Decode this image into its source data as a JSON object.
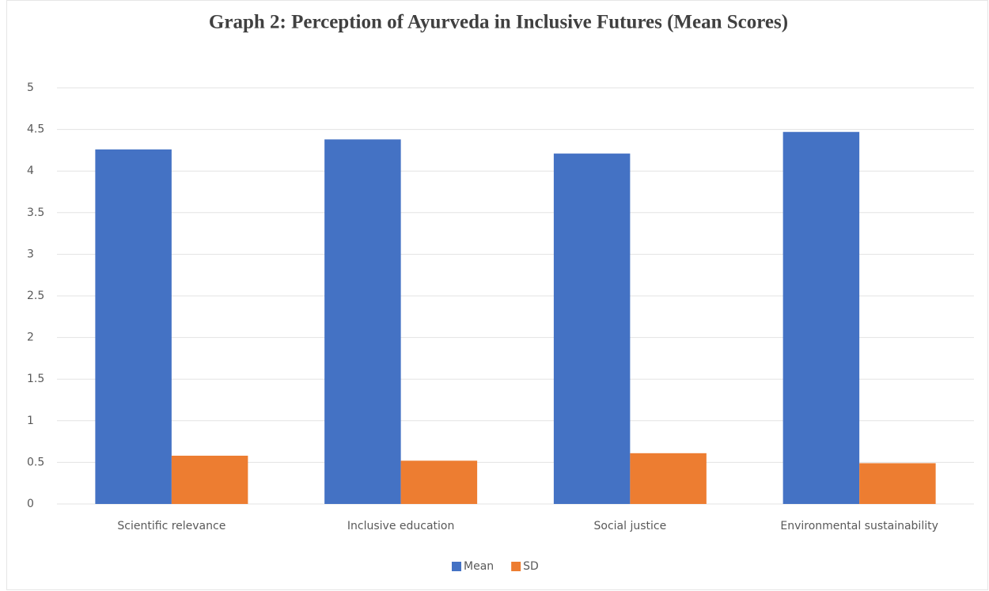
{
  "chart_data": {
    "type": "bar",
    "title": "Graph 2: Perception of Ayurveda in Inclusive Futures (Mean Scores)",
    "categories": [
      "Scientific relevance",
      "Inclusive education",
      "Social justice",
      "Environmental sustainability"
    ],
    "series": [
      {
        "name": "Mean",
        "color": "#4472c4",
        "values": [
          4.26,
          4.38,
          4.21,
          4.47
        ]
      },
      {
        "name": "SD",
        "color": "#ed7d31",
        "values": [
          0.58,
          0.52,
          0.61,
          0.49
        ]
      }
    ],
    "ylim": [
      0,
      5
    ],
    "yticks": [
      0,
      0.5,
      1,
      1.5,
      2,
      2.5,
      3,
      3.5,
      4,
      4.5,
      5
    ],
    "grid": true,
    "legend": "bottom"
  }
}
